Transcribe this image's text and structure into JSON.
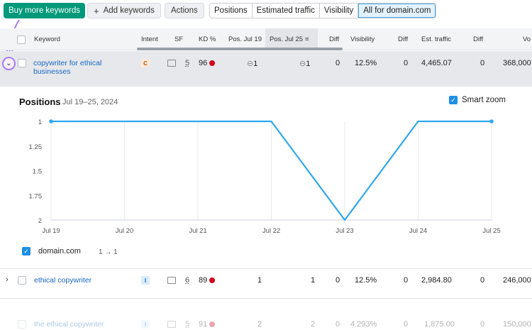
{
  "toolbar": {
    "buy_more": "Buy more keywords",
    "add_keywords": "Add keywords",
    "actions": "Actions",
    "segments": [
      "Positions",
      "Estimated traffic",
      "Visibility",
      "All for domain.com"
    ]
  },
  "table": {
    "headers": {
      "keyword": "Keyword",
      "intent": "Intent",
      "sf": "SF",
      "kd": "KD %",
      "pos1": "Pos. Jul 19",
      "pos2": "Pos. Jul 25",
      "diff1": "Diff",
      "visibility": "Visibility",
      "diff2": "Diff",
      "traffic": "Est. traffic",
      "diff3": "Diff",
      "volume": "Vo"
    },
    "rows": [
      {
        "keyword": "copywriter for ethical businesses",
        "intent": "C",
        "sf": "5",
        "kd": "96",
        "pos1": "1",
        "pos2": "1",
        "diff1": "0",
        "visibility": "12.5%",
        "diff2": "0",
        "traffic": "4,465.07",
        "diff3": "0",
        "volume": "368,000"
      },
      {
        "keyword": "ethical copywriter",
        "intent": "I",
        "sf": "6",
        "kd": "89",
        "pos1": "1",
        "pos2": "1",
        "diff1": "0",
        "visibility": "12.5%",
        "diff2": "0",
        "traffic": "2,984.80",
        "diff3": "0",
        "volume": "246,000"
      },
      {
        "keyword": "the ethical copywriter",
        "intent": "I",
        "sf": "5",
        "kd": "91",
        "pos1": "2",
        "pos2": "2",
        "diff1": "0",
        "visibility": "4.293%",
        "diff2": "0",
        "traffic": "1,875.00",
        "diff3": "0",
        "volume": "150,000"
      }
    ]
  },
  "chart": {
    "title": "Positions",
    "subtitle": "Jul 19–25, 2024",
    "smart_zoom": "Smart zoom",
    "legend_label": "domain.com",
    "legend_range": "1 → 1",
    "line_color": "#2ea8f0"
  },
  "chart_data": {
    "type": "line",
    "x": [
      "Jul 19",
      "Jul 20",
      "Jul 21",
      "Jul 22",
      "Jul 23",
      "Jul 24",
      "Jul 25"
    ],
    "series": [
      {
        "name": "domain.com",
        "values": [
          1,
          1,
          1,
          1,
          2,
          1,
          1
        ]
      }
    ],
    "y_ticks": [
      "1",
      "1.25",
      "1.5",
      "1.75",
      "2"
    ],
    "ylim": [
      1,
      2
    ],
    "y_inverted": true,
    "grid": "vertical"
  }
}
